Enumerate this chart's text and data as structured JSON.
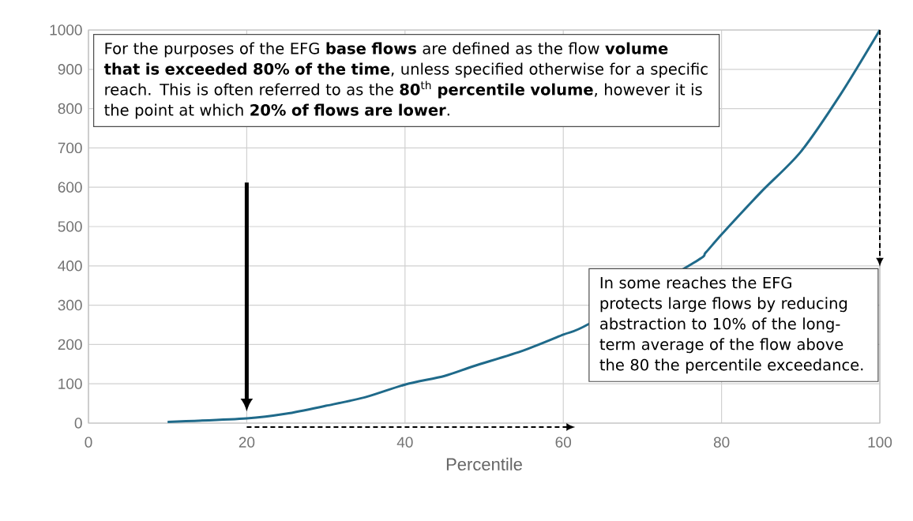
{
  "chart_data": {
    "type": "line",
    "xlabel": "Percentile",
    "x": [
      10,
      20,
      25,
      30,
      35,
      40,
      45,
      48.7,
      55,
      60,
      63.3,
      76.5,
      78,
      80,
      85,
      90,
      95,
      100
    ],
    "values": [
      3,
      12,
      24,
      44,
      66,
      98,
      120,
      145,
      185,
      225,
      253,
      408,
      434,
      480,
      588,
      690,
      835,
      1000
    ],
    "color": "#1f6a8a",
    "xlim": [
      0,
      100
    ],
    "ylim": [
      0,
      1000
    ],
    "xticks": [
      0,
      20,
      40,
      60,
      80,
      100
    ],
    "yticks": [
      0,
      100,
      200,
      300,
      400,
      500,
      600,
      700,
      800,
      900,
      1000
    ],
    "grid": true,
    "annotations": [
      "For the purposes of the EFG **base flows** are defined as the flow **volume that is exceeded 80% of the time**, unless specified otherwise for a specific reach. This is often referred to as the **80**$^{th}$ **percentile volume**, however it is the point at which **20% of flows are lower**.",
      "In some reaches the EFG protects large flows by reducing abstraction to 10% of the long-term average of the flow above the 80 the percentile exceedance."
    ]
  }
}
